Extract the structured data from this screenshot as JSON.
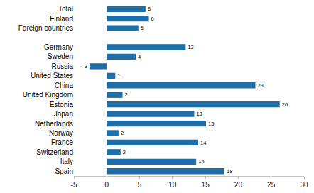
{
  "chart_data": {
    "type": "bar",
    "orientation": "horizontal",
    "categories": [
      "Total",
      "Finland",
      "Foreign countries",
      null,
      "Germany",
      "Sweden",
      "Russia",
      "United States",
      "China",
      "United Kingdom",
      "Estonia",
      "Japan",
      "Netherlands",
      "Norway",
      "France",
      "Switzerland",
      "Italy",
      "Spain"
    ],
    "values": [
      5.9,
      6.4,
      4.8,
      null,
      12.0,
      4.4,
      -2.6,
      1.3,
      22.6,
      2.4,
      26.3,
      13.3,
      15.1,
      1.8,
      13.9,
      2.1,
      13.6,
      17.9
    ],
    "value_labels": [
      "6",
      "6",
      "5",
      null,
      "12",
      "4",
      "-3",
      "1",
      "23",
      "2",
      "26",
      "13",
      "15",
      "2",
      "14",
      "2",
      "14",
      "18"
    ],
    "color": "#1f6ea6",
    "xlim": [
      -5,
      30
    ],
    "xticks": [
      -5,
      0,
      5,
      10,
      15,
      20,
      25,
      30
    ],
    "grid": false,
    "data_labels": true
  }
}
